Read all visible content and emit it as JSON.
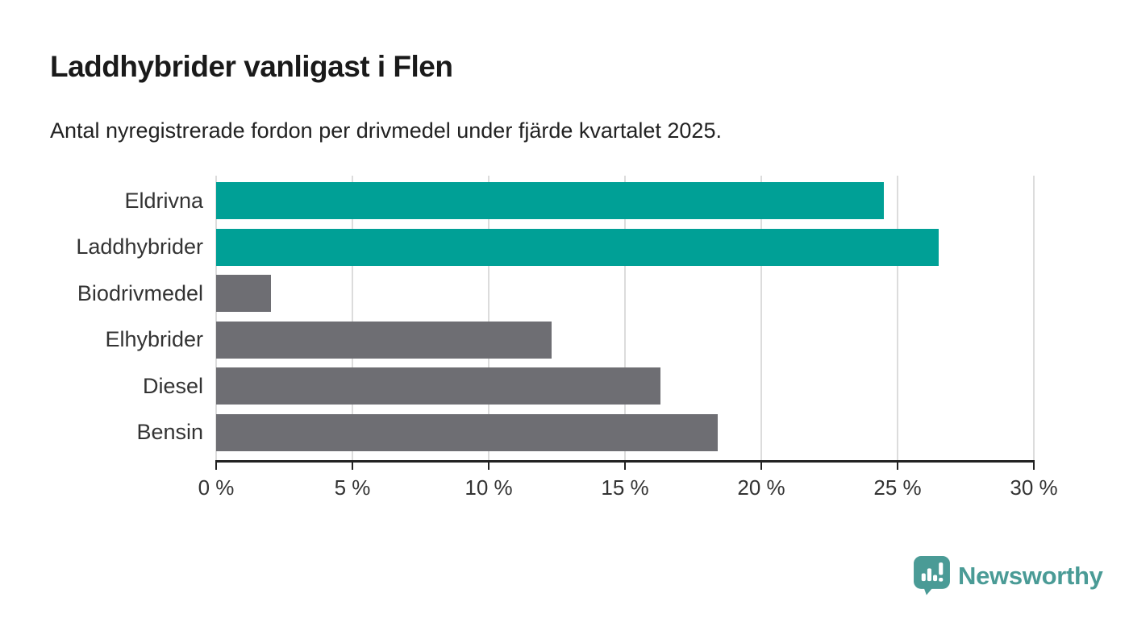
{
  "header": {
    "title": "Laddhybrider vanligast i Flen",
    "subtitle": "Antal nyregistrerade fordon per drivmedel under fjärde kvartalet 2025."
  },
  "chart_data": {
    "type": "bar",
    "orientation": "horizontal",
    "title": "Laddhybrider vanligast i Flen",
    "subtitle": "Antal nyregistrerade fordon per drivmedel under fjärde kvartalet 2025.",
    "categories": [
      "Eldrivna",
      "Laddhybrider",
      "Biodrivmedel",
      "Elhybrider",
      "Diesel",
      "Bensin"
    ],
    "values": [
      24.5,
      26.5,
      2.0,
      12.3,
      16.3,
      18.4
    ],
    "unit": "%",
    "bar_colors": [
      "#00a096",
      "#00a096",
      "#6e6e73",
      "#6e6e73",
      "#6e6e73",
      "#6e6e73"
    ],
    "xlim": [
      0,
      30
    ],
    "x_ticks": [
      0,
      5,
      10,
      15,
      20,
      25,
      30
    ],
    "x_tick_labels": [
      "0 %",
      "5 %",
      "10 %",
      "15 %",
      "20 %",
      "25 %",
      "30 %"
    ],
    "grid": true,
    "legend": "none",
    "xlabel": "",
    "ylabel": ""
  },
  "footer": {
    "brand": "Newsworthy",
    "brand_color": "#4a9b96",
    "logo_icon": "newsworthy-speech-bubble-bar-chart-icon"
  },
  "colors": {
    "highlight_bar": "#00a096",
    "muted_bar": "#6e6e73",
    "gridline": "#dcdcdc",
    "axis": "#222222",
    "text": "#333333",
    "title_text": "#1a1a1a"
  }
}
